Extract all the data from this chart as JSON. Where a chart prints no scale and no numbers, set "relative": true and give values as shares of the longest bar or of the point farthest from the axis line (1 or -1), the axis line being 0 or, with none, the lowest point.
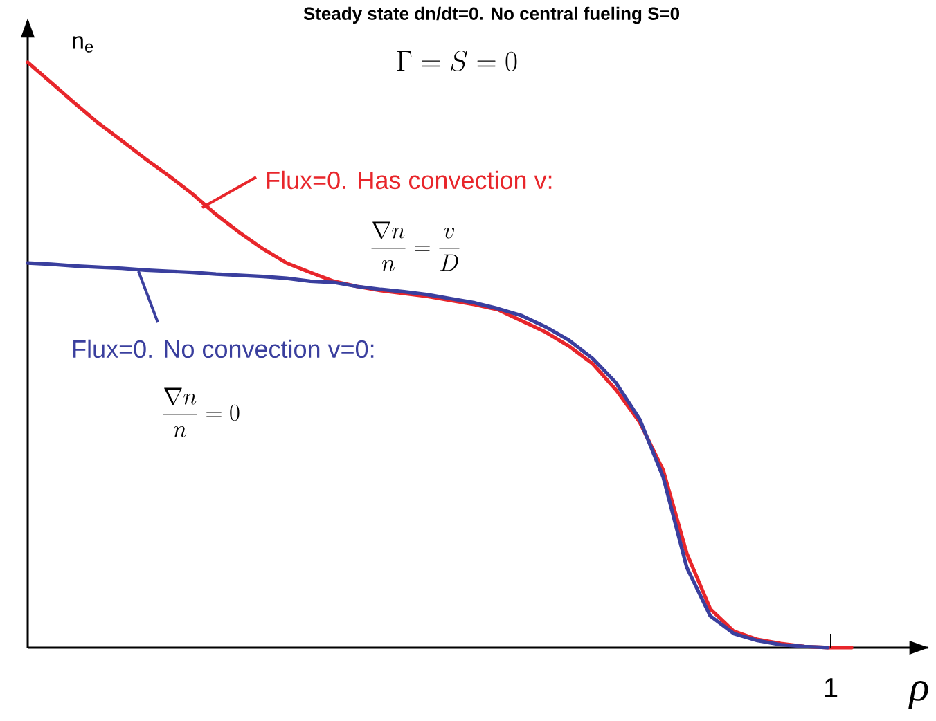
{
  "chart_data": {
    "type": "line",
    "title": "Steady state dn/dt=0. No central fueling S=0",
    "subtitle": "\\Gamma = S = 0",
    "xlabel": "ρ",
    "ylabel": "n$_{e}$",
    "relative": true,
    "categories": [
      null,
      null,
      null,
      null,
      null,
      null,
      null,
      null,
      null,
      null,
      null,
      null,
      null,
      null,
      null,
      null,
      null,
      null,
      null,
      null,
      null,
      null,
      null,
      null,
      null,
      null,
      null,
      null,
      null,
      null,
      null,
      null,
      null,
      null,
      null,
      null
    ],
    "series": [
      {
        "color": "#e8262b",
        "values": [
          1.0,
          0.965,
          0.93,
          0.896,
          0.866,
          0.835,
          0.806,
          0.775,
          0.74,
          0.709,
          0.681,
          0.657,
          0.641,
          0.626,
          0.617,
          0.61,
          0.605,
          0.6,
          0.593,
          0.586,
          0.577,
          0.558,
          0.539,
          0.515,
          0.485,
          0.44,
          0.385,
          0.303,
          0.161,
          0.066,
          0.028,
          0.014,
          0.007,
          0.002,
          0,
          0
        ]
      },
      {
        "color": "#3a3f9e",
        "values": [
          0.657,
          0.655,
          0.652,
          0.65,
          0.648,
          0.645,
          0.643,
          0.641,
          0.638,
          0.636,
          0.634,
          0.631,
          0.626,
          0.624,
          0.617,
          0.612,
          0.608,
          0.603,
          0.596,
          0.589,
          0.579,
          0.567,
          0.548,
          0.525,
          0.494,
          0.452,
          0.39,
          0.291,
          0.137,
          0.054,
          0.024,
          0.012,
          0.005,
          0.002,
          0,
          null
        ]
      }
    ],
    "annotations": [
      "Flux=0. Has convection v:",
      "\\frac{\\nabla n}{n}=\\frac{v}{D}",
      "Flux=0. No convection v=0:",
      "\\frac{\\nabla n}{n}=0",
      "1"
    ]
  }
}
